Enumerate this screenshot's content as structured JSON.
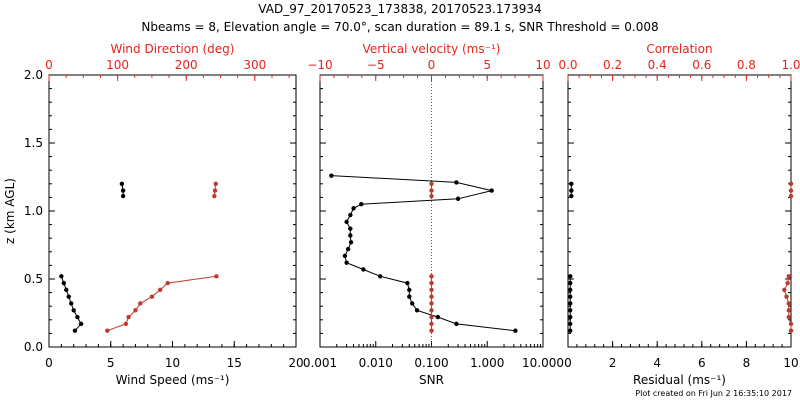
{
  "title_line1": "VAD_97_20170523_173838, 20170523.173934",
  "title_line2": "Nbeams = 8, Elevation angle = 70.0°, scan duration = 89.1 s, SNR Threshold = 0.008",
  "footer": "Plot created on Fri Jun  2 16:35:10 2017",
  "colors": {
    "black_series": "#000000",
    "red_series": "#c0392b",
    "top_axis": "#e8241c"
  },
  "chart_data": [
    {
      "type": "line",
      "panel": "left",
      "ylabel": "z (km AGL)",
      "ylim": [
        0.0,
        2.0
      ],
      "yticks": [
        0.0,
        0.5,
        1.0,
        1.5,
        2.0
      ],
      "ytick_labels": [
        "0.0",
        "0.5",
        "1.0",
        "1.5",
        "2.0"
      ],
      "xlabel_bottom": "Wind Speed (ms⁻¹)",
      "xlim_bottom": [
        0,
        20
      ],
      "xticks_bottom": [
        0,
        5,
        10,
        15,
        20
      ],
      "xtick_labels_bottom": [
        "0",
        "5",
        "10",
        "15",
        "20"
      ],
      "xlabel_top": "Wind Direction (deg)",
      "xlim_top": [
        0,
        360
      ],
      "xticks_top": [
        0,
        100,
        200,
        300
      ],
      "xtick_labels_top": [
        "0",
        "100",
        "200",
        "300"
      ],
      "series": [
        {
          "axis": "bottom",
          "color": "black",
          "segments": [
            [
              [
                2.1,
                0.12
              ],
              [
                2.6,
                0.17
              ],
              [
                2.3,
                0.22
              ],
              [
                2.0,
                0.27
              ],
              [
                1.8,
                0.32
              ],
              [
                1.6,
                0.37
              ],
              [
                1.4,
                0.42
              ],
              [
                1.2,
                0.47
              ],
              [
                1.0,
                0.52
              ]
            ],
            [
              [
                5.9,
                1.2
              ],
              [
                6.0,
                1.15
              ],
              [
                6.0,
                1.11
              ]
            ]
          ]
        },
        {
          "axis": "top",
          "color": "red",
          "segments": [
            [
              [
                85,
                0.12
              ],
              [
                112,
                0.17
              ],
              [
                116,
                0.22
              ],
              [
                126,
                0.27
              ],
              [
                133,
                0.32
              ],
              [
                150,
                0.37
              ],
              [
                162,
                0.42
              ],
              [
                173,
                0.47
              ],
              [
                244,
                0.52
              ]
            ],
            [
              [
                243,
                1.2
              ],
              [
                242,
                1.15
              ],
              [
                241,
                1.11
              ]
            ]
          ]
        }
      ]
    },
    {
      "type": "line",
      "panel": "middle",
      "xlabel_bottom": "SNR",
      "xscale_bottom": "log",
      "xlim_bottom": [
        0.001,
        10
      ],
      "xticks_bottom": [
        0.001,
        0.01,
        0.1,
        1,
        10
      ],
      "xtick_labels_bottom": [
        "0.001",
        "0.010",
        "0.100",
        "1.000",
        "10.000"
      ],
      "xlabel_top": "Vertical velocity (ms⁻¹)",
      "xlim_top": [
        -10,
        10
      ],
      "xticks_top": [
        -10,
        -5,
        0,
        5,
        10
      ],
      "xtick_labels_top": [
        "−10",
        "−5",
        "0",
        "5",
        "10"
      ],
      "reference_line": {
        "axis": "top",
        "value": 0,
        "style": "dotted",
        "color": "red"
      },
      "ylim": [
        0.0,
        2.0
      ],
      "series": [
        {
          "axis": "bottom",
          "color": "black",
          "segments": [
            [
              [
                3.2,
                0.12
              ],
              [
                0.28,
                0.17
              ],
              [
                0.13,
                0.22
              ],
              [
                0.055,
                0.27
              ],
              [
                0.045,
                0.32
              ],
              [
                0.04,
                0.37
              ],
              [
                0.04,
                0.42
              ],
              [
                0.037,
                0.47
              ],
              [
                0.012,
                0.52
              ],
              [
                0.006,
                0.57
              ],
              [
                0.003,
                0.62
              ],
              [
                0.0028,
                0.67
              ],
              [
                0.0032,
                0.72
              ],
              [
                0.0036,
                0.77
              ],
              [
                0.0035,
                0.82
              ],
              [
                0.0035,
                0.87
              ],
              [
                0.003,
                0.92
              ],
              [
                0.0035,
                0.97
              ],
              [
                0.004,
                1.02
              ],
              [
                0.0055,
                1.05
              ],
              [
                0.3,
                1.09
              ],
              [
                1.2,
                1.15
              ],
              [
                0.28,
                1.21
              ],
              [
                0.0016,
                1.26
              ]
            ]
          ]
        },
        {
          "axis": "top",
          "color": "red",
          "segments": [
            [
              [
                0,
                0.12
              ],
              [
                0,
                0.17
              ],
              [
                0,
                0.22
              ],
              [
                0,
                0.27
              ],
              [
                0,
                0.32
              ],
              [
                0,
                0.37
              ],
              [
                0,
                0.42
              ],
              [
                0,
                0.47
              ],
              [
                0,
                0.52
              ]
            ],
            [
              [
                0,
                1.2
              ],
              [
                0,
                1.15
              ],
              [
                0,
                1.11
              ]
            ]
          ]
        }
      ]
    },
    {
      "type": "line",
      "panel": "right",
      "xlabel_bottom": "Residual (ms⁻¹)",
      "xlim_bottom": [
        0,
        10
      ],
      "xticks_bottom": [
        0,
        2,
        4,
        6,
        8,
        10
      ],
      "xtick_labels_bottom": [
        "0",
        "2",
        "4",
        "6",
        "8",
        "10"
      ],
      "xlabel_top": "Correlation",
      "xlim_top": [
        0.0,
        1.0
      ],
      "xticks_top": [
        0.0,
        0.2,
        0.4,
        0.6,
        0.8,
        1.0
      ],
      "xtick_labels_top": [
        "0.0",
        "0.2",
        "0.4",
        "0.6",
        "0.8",
        "1.0"
      ],
      "ylim": [
        0.0,
        2.0
      ],
      "series": [
        {
          "axis": "bottom",
          "color": "black",
          "segments": [
            [
              [
                0.1,
                0.12
              ],
              [
                0.1,
                0.17
              ],
              [
                0.1,
                0.22
              ],
              [
                0.1,
                0.27
              ],
              [
                0.1,
                0.32
              ],
              [
                0.1,
                0.37
              ],
              [
                0.1,
                0.42
              ],
              [
                0.1,
                0.47
              ],
              [
                0.1,
                0.52
              ]
            ],
            [
              [
                0.15,
                1.2
              ],
              [
                0.15,
                1.15
              ],
              [
                0.15,
                1.11
              ]
            ]
          ]
        },
        {
          "axis": "top",
          "color": "red",
          "segments": [
            [
              [
                1.0,
                0.12
              ],
              [
                1.0,
                0.17
              ],
              [
                0.99,
                0.22
              ],
              [
                0.99,
                0.27
              ],
              [
                0.99,
                0.32
              ],
              [
                0.98,
                0.37
              ],
              [
                0.97,
                0.42
              ],
              [
                0.985,
                0.47
              ],
              [
                0.99,
                0.52
              ]
            ],
            [
              [
                1.0,
                1.2
              ],
              [
                1.0,
                1.15
              ],
              [
                1.0,
                1.11
              ]
            ]
          ]
        }
      ]
    }
  ]
}
